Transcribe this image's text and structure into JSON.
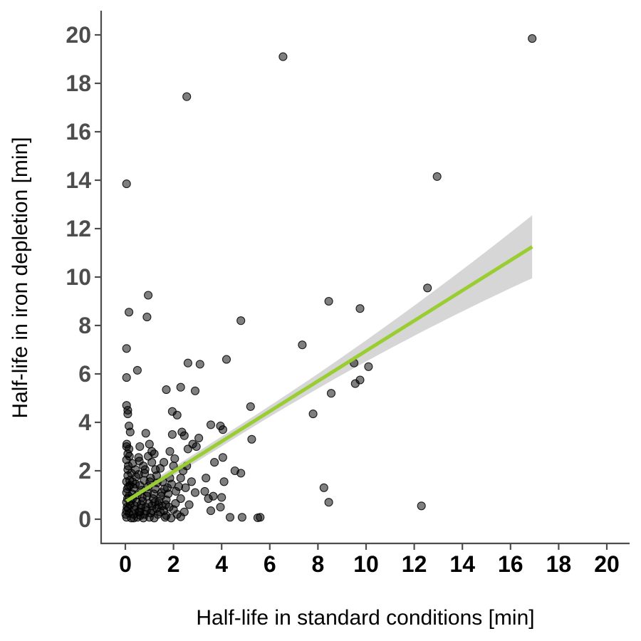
{
  "chart_data": {
    "type": "scatter",
    "title": "",
    "xlabel": "Half-life in standard conditions [min]",
    "ylabel": "Half-life in iron depletion [min]",
    "xlim": [
      -1,
      21
    ],
    "ylim": [
      -1,
      21
    ],
    "x_ticks": [
      "0",
      "2",
      "4",
      "6",
      "8",
      "10",
      "12",
      "14",
      "16",
      "18",
      "20"
    ],
    "y_ticks": [
      "0",
      "2",
      "4",
      "6",
      "8",
      "10",
      "12",
      "14",
      "16",
      "18",
      "20"
    ],
    "grid": false,
    "legend": "none",
    "colors": {
      "points": "#000000",
      "regression_line": "#9acd32",
      "confidence_band": "#d6d6d6",
      "axis": "#4d4d4d"
    },
    "regression": {
      "x": [
        0.05,
        16.9
      ],
      "y": [
        0.75,
        11.25
      ],
      "ci_upper_end": 12.55,
      "ci_lower_end": 9.95,
      "ci_width_at_origin": 0.28
    },
    "points": [
      [
        16.9,
        19.85
      ],
      [
        6.55,
        19.1
      ],
      [
        2.55,
        17.45
      ],
      [
        0.05,
        13.85
      ],
      [
        12.95,
        14.15
      ],
      [
        12.55,
        9.55
      ],
      [
        0.95,
        9.25
      ],
      [
        0.15,
        8.55
      ],
      [
        0.9,
        8.35
      ],
      [
        4.8,
        8.2
      ],
      [
        8.45,
        9.0
      ],
      [
        9.75,
        8.7
      ],
      [
        0.05,
        7.05
      ],
      [
        7.35,
        7.2
      ],
      [
        0.5,
        6.15
      ],
      [
        0.05,
        5.85
      ],
      [
        2.6,
        6.45
      ],
      [
        3.1,
        6.4
      ],
      [
        4.2,
        6.6
      ],
      [
        9.5,
        6.45
      ],
      [
        10.1,
        6.3
      ],
      [
        9.55,
        5.6
      ],
      [
        9.75,
        5.75
      ],
      [
        1.7,
        5.35
      ],
      [
        2.3,
        5.45
      ],
      [
        2.9,
        5.3
      ],
      [
        8.55,
        5.2
      ],
      [
        0.05,
        4.7
      ],
      [
        0.1,
        4.5
      ],
      [
        0.1,
        4.35
      ],
      [
        1.95,
        4.45
      ],
      [
        2.15,
        4.3
      ],
      [
        5.2,
        4.65
      ],
      [
        7.8,
        4.35
      ],
      [
        0.15,
        3.85
      ],
      [
        0.2,
        3.6
      ],
      [
        0.85,
        3.55
      ],
      [
        1.95,
        3.5
      ],
      [
        2.35,
        3.6
      ],
      [
        2.45,
        3.45
      ],
      [
        2.8,
        3.1
      ],
      [
        3.05,
        3.35
      ],
      [
        3.55,
        3.9
      ],
      [
        3.95,
        3.85
      ],
      [
        4.05,
        3.7
      ],
      [
        5.25,
        3.3
      ],
      [
        0.05,
        3.0
      ],
      [
        0.15,
        2.9
      ],
      [
        0.1,
        2.7
      ],
      [
        0.6,
        3.0
      ],
      [
        1.0,
        3.1
      ],
      [
        1.1,
        2.8
      ],
      [
        1.2,
        2.7
      ],
      [
        1.85,
        2.8
      ],
      [
        2.05,
        2.5
      ],
      [
        2.6,
        2.9
      ],
      [
        2.95,
        3.0
      ],
      [
        3.7,
        2.35
      ],
      [
        4.05,
        2.55
      ],
      [
        0.05,
        2.45
      ],
      [
        0.3,
        2.3
      ],
      [
        0.55,
        2.55
      ],
      [
        0.75,
        2.2
      ],
      [
        1.1,
        2.35
      ],
      [
        1.45,
        2.1
      ],
      [
        1.6,
        2.35
      ],
      [
        2.0,
        2.2
      ],
      [
        2.4,
        2.0
      ],
      [
        2.55,
        2.2
      ],
      [
        0.1,
        2.05
      ],
      [
        0.25,
        1.9
      ],
      [
        0.45,
        1.75
      ],
      [
        0.8,
        1.9
      ],
      [
        1.05,
        1.7
      ],
      [
        1.3,
        1.8
      ],
      [
        1.55,
        1.55
      ],
      [
        1.85,
        1.7
      ],
      [
        2.3,
        1.7
      ],
      [
        2.75,
        1.55
      ],
      [
        3.35,
        1.7
      ],
      [
        4.55,
        2.0
      ],
      [
        4.8,
        1.9
      ],
      [
        0.05,
        1.55
      ],
      [
        0.2,
        1.4
      ],
      [
        0.35,
        1.3
      ],
      [
        0.6,
        1.4
      ],
      [
        0.95,
        1.35
      ],
      [
        1.25,
        1.25
      ],
      [
        1.5,
        1.1
      ],
      [
        1.75,
        1.3
      ],
      [
        2.1,
        1.15
      ],
      [
        2.5,
        1.3
      ],
      [
        2.9,
        1.1
      ],
      [
        3.3,
        1.15
      ],
      [
        3.65,
        0.95
      ],
      [
        4.0,
        0.9
      ],
      [
        4.1,
        1.55
      ],
      [
        8.25,
        1.3
      ],
      [
        0.05,
        1.1
      ],
      [
        0.15,
        0.95
      ],
      [
        0.3,
        0.85
      ],
      [
        0.5,
        1.0
      ],
      [
        0.7,
        0.9
      ],
      [
        0.9,
        0.95
      ],
      [
        1.15,
        0.85
      ],
      [
        1.4,
        0.75
      ],
      [
        1.7,
        0.8
      ],
      [
        2.3,
        0.85
      ],
      [
        2.65,
        0.6
      ],
      [
        3.45,
        0.85
      ],
      [
        0.05,
        0.7
      ],
      [
        0.2,
        0.6
      ],
      [
        0.4,
        0.55
      ],
      [
        0.65,
        0.6
      ],
      [
        0.85,
        0.5
      ],
      [
        1.1,
        0.55
      ],
      [
        1.3,
        0.45
      ],
      [
        1.6,
        0.35
      ],
      [
        2.0,
        0.4
      ],
      [
        2.45,
        0.3
      ],
      [
        3.55,
        0.35
      ],
      [
        3.95,
        0.5
      ],
      [
        8.45,
        0.7
      ],
      [
        12.3,
        0.55
      ],
      [
        0.05,
        0.35
      ],
      [
        0.15,
        0.25
      ],
      [
        0.35,
        0.2
      ],
      [
        0.6,
        0.3
      ],
      [
        0.8,
        0.2
      ],
      [
        1.05,
        0.25
      ],
      [
        1.35,
        0.2
      ],
      [
        1.7,
        0.15
      ],
      [
        2.15,
        0.2
      ],
      [
        0.05,
        0.08
      ],
      [
        0.25,
        0.05
      ],
      [
        0.5,
        0.08
      ],
      [
        0.75,
        0.05
      ],
      [
        1.0,
        0.08
      ],
      [
        1.2,
        0.05
      ],
      [
        1.65,
        0.08
      ],
      [
        1.9,
        0.05
      ],
      [
        2.3,
        0.1
      ],
      [
        4.35,
        0.08
      ],
      [
        4.85,
        0.08
      ],
      [
        5.5,
        0.06
      ],
      [
        5.6,
        0.08
      ],
      [
        0.1,
        1.8
      ],
      [
        0.12,
        2.2
      ],
      [
        0.08,
        1.25
      ],
      [
        0.18,
        1.6
      ],
      [
        0.28,
        1.05
      ],
      [
        0.42,
        1.45
      ],
      [
        0.55,
        1.85
      ],
      [
        0.68,
        1.2
      ],
      [
        0.78,
        1.6
      ],
      [
        0.92,
        1.1
      ],
      [
        1.02,
        1.55
      ],
      [
        1.18,
        1.05
      ],
      [
        1.32,
        1.5
      ],
      [
        1.48,
        0.95
      ],
      [
        1.62,
        1.25
      ],
      [
        1.78,
        1.05
      ],
      [
        1.92,
        1.45
      ],
      [
        2.08,
        0.65
      ],
      [
        2.22,
        1.35
      ],
      [
        0.12,
        0.45
      ],
      [
        0.22,
        0.75
      ],
      [
        0.38,
        0.4
      ],
      [
        0.48,
        0.7
      ],
      [
        0.62,
        0.15
      ],
      [
        0.72,
        0.75
      ],
      [
        0.88,
        0.35
      ],
      [
        0.98,
        0.65
      ],
      [
        1.12,
        0.35
      ],
      [
        1.22,
        0.7
      ],
      [
        1.38,
        0.6
      ],
      [
        1.52,
        0.55
      ],
      [
        1.68,
        0.6
      ],
      [
        1.82,
        0.5
      ],
      [
        0.02,
        0.2
      ],
      [
        0.07,
        0.5
      ],
      [
        0.09,
        0.85
      ],
      [
        0.13,
        1.35
      ],
      [
        0.17,
        2.6
      ],
      [
        0.06,
        3.1
      ],
      [
        0.3,
        1.55
      ],
      [
        0.42,
        2.05
      ],
      [
        0.58,
        2.4
      ],
      [
        0.82,
        2.05
      ],
      [
        0.95,
        2.6
      ],
      [
        1.25,
        2.05
      ],
      [
        0.35,
        0.05
      ],
      [
        0.55,
        0.3
      ],
      [
        0.65,
        0.45
      ],
      [
        1.45,
        0.3
      ]
    ]
  }
}
